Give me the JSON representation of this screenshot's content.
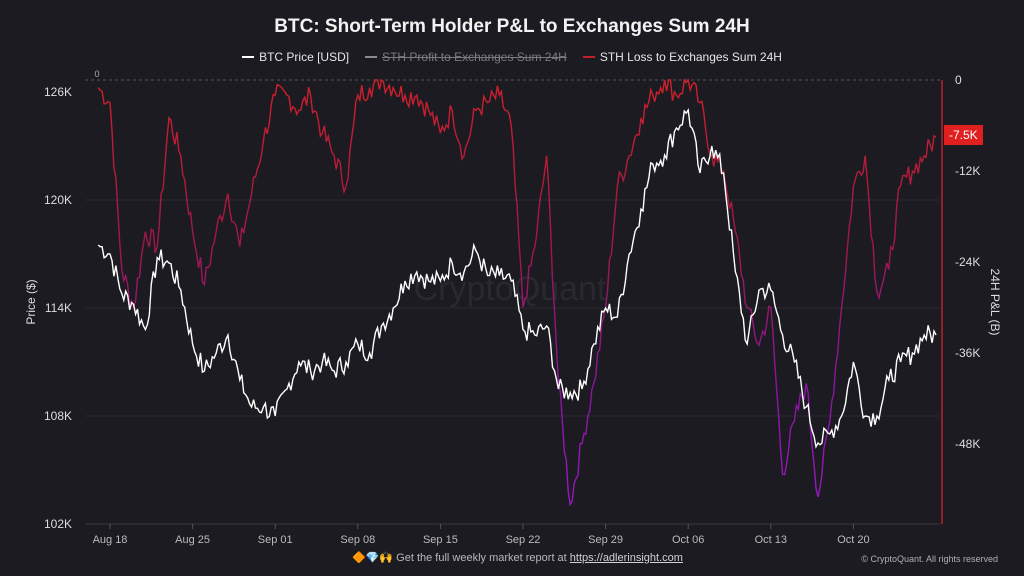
{
  "chart_data": {
    "type": "line",
    "title": "BTC: Short-Term Holder P&L to Exchanges Sum 24H",
    "ylabel": "Price ($)",
    "y2label": "24H P&L (B)",
    "ylim": [
      102000,
      126600
    ],
    "y2lim": [
      -58.5,
      0
    ],
    "yticks": [
      "126K",
      "120K",
      "114K",
      "108K",
      "102K"
    ],
    "y2ticks": [
      "0",
      "-12K",
      "-24K",
      "-36K",
      "-48K"
    ],
    "xticks": [
      "Aug 18",
      "Aug 25",
      "Sep 01",
      "Sep 08",
      "Sep 15",
      "Sep 22",
      "Sep 29",
      "Oct 06",
      "Oct 13",
      "Oct 20"
    ],
    "x_start": "Aug 17",
    "x_unit": "day index from Aug 17",
    "legend": [
      {
        "name": "BTC Price [USD]",
        "color": "#ffffff",
        "visible": true
      },
      {
        "name": "STH Profit to Exchanges Sum 24H",
        "color": "#8a8a90",
        "visible": false
      },
      {
        "name": "STH Loss to Exchanges Sum 24H",
        "color": "#c0202a",
        "visible": true
      }
    ],
    "series": [
      {
        "name": "BTC Price [USD]",
        "unit": "K USD",
        "values": [
          117.5,
          117,
          114.8,
          114.2,
          112.8,
          116.8,
          116.5,
          115,
          112,
          110.5,
          111.5,
          112.5,
          110,
          108.5,
          108.5,
          108,
          109.5,
          111,
          110.5,
          111,
          110.5,
          111,
          112,
          111.5,
          113,
          114,
          115.5,
          116,
          115.5,
          115.5,
          116.5,
          116,
          117.2,
          115.8,
          115.8,
          115.5,
          112.8,
          112.5,
          113,
          109.5,
          109.3,
          109.5,
          112,
          114,
          113.5,
          117,
          119.5,
          122,
          122.5,
          124,
          125,
          121.5,
          123,
          121.5,
          116,
          112,
          115,
          115,
          112.5,
          111,
          108.5,
          106.5,
          107,
          108,
          111,
          108,
          108,
          110,
          111,
          111.5,
          112.5,
          112.5
        ]
      },
      {
        "name": "STH Loss to Exchanges Sum 24H",
        "unit": "K",
        "values": [
          -1,
          -3,
          -25,
          -30,
          -20,
          -22,
          -5,
          -10,
          -20,
          -27,
          -20,
          -15,
          -22,
          -15,
          -8,
          -2,
          -2,
          -4,
          -2,
          -7,
          -10,
          -14,
          -2,
          -1,
          0,
          -1,
          -2,
          -2,
          -4,
          -7,
          -4,
          -10,
          -4,
          -3,
          -2,
          -6,
          -30,
          -22,
          -10,
          -40,
          -56,
          -48,
          -40,
          -30,
          -14,
          -10,
          -5,
          -2,
          0,
          -2,
          0,
          -3,
          -10,
          -12,
          -20,
          -30,
          -35,
          -30,
          -52,
          -45,
          -40,
          -55,
          -45,
          -30,
          -14,
          -10,
          -28,
          -25,
          -14,
          -12,
          -10,
          -7.5
        ]
      }
    ],
    "current_value_label": "-7.5K",
    "top_zero_label": "0",
    "watermark": "CryptoQuant"
  },
  "legend_labels": [
    "BTC Price [USD]",
    "STH Profit to Exchanges Sum 24H",
    "STH Loss to Exchanges Sum 24H"
  ],
  "footer": {
    "emoji": "🔶💎🙌",
    "text": "Get the full weekly market report at",
    "link": "https://adlerinsight.com"
  },
  "copyright": "© CryptoQuant. All rights reserved"
}
